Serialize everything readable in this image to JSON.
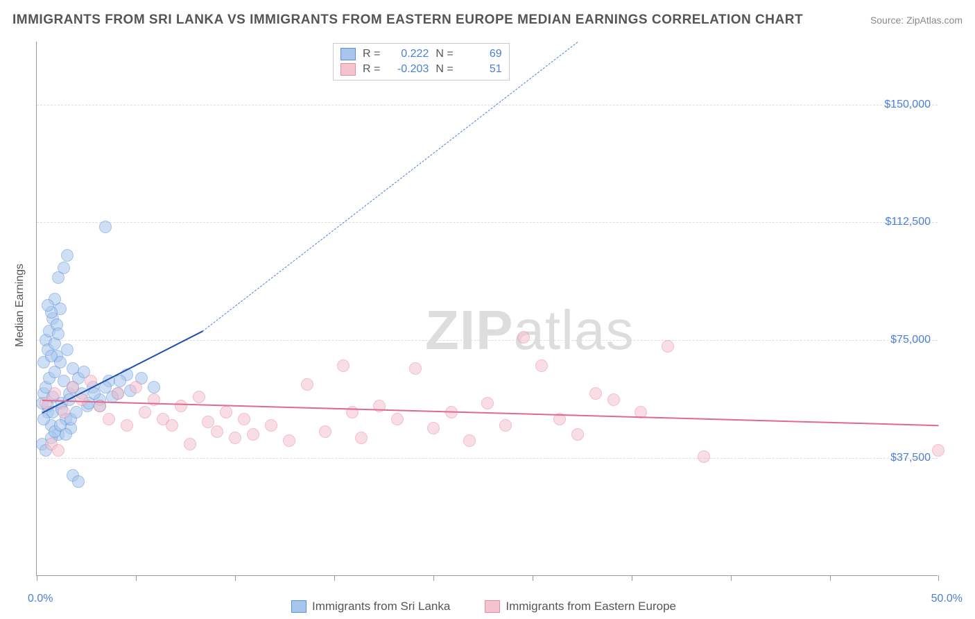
{
  "header": {
    "title": "IMMIGRANTS FROM SRI LANKA VS IMMIGRANTS FROM EASTERN EUROPE MEDIAN EARNINGS CORRELATION CHART",
    "source": "Source: ZipAtlas.com"
  },
  "watermark": {
    "left": "ZIP",
    "right": "atlas"
  },
  "chart": {
    "type": "scatter",
    "ylabel": "Median Earnings",
    "xlim": [
      0,
      50
    ],
    "ylim": [
      0,
      170000
    ],
    "background_color": "#ffffff",
    "grid_color": "#dddddd",
    "axis_color": "#999999",
    "ytick_values": [
      37500,
      75000,
      112500,
      150000
    ],
    "ytick_labels": [
      "$37,500",
      "$75,000",
      "$112,500",
      "$150,000"
    ],
    "xtick_positions": [
      0,
      5.5,
      11,
      16.5,
      22,
      27.5,
      33,
      38.5,
      44,
      50
    ],
    "xtick_labels": {
      "min": "0.0%",
      "max": "50.0%"
    },
    "marker_radius": 9,
    "series": [
      {
        "key": "sri_lanka",
        "label": "Immigrants from Sri Lanka",
        "fill_color": "#a7c6ed",
        "stroke_color": "#5b8fd6",
        "fill_opacity": 0.55,
        "r_value": "0.222",
        "n_value": "69",
        "trend": {
          "x1": 0.3,
          "y1": 52000,
          "x2": 9.2,
          "y2": 78000,
          "dash_x1": 9.2,
          "dash_y1": 78000,
          "dash_x2": 30,
          "dash_y2": 170000,
          "solid_color": "#1f4fa8",
          "dash_color": "#4a7fd6",
          "solid_width": 2,
          "dash_width": 1.5
        },
        "points": [
          [
            0.3,
            55000
          ],
          [
            0.4,
            58000
          ],
          [
            0.5,
            60000
          ],
          [
            0.6,
            52000
          ],
          [
            0.7,
            63000
          ],
          [
            0.8,
            48000
          ],
          [
            0.9,
            57000
          ],
          [
            1.0,
            65000
          ],
          [
            1.1,
            70000
          ],
          [
            1.2,
            45000
          ],
          [
            1.3,
            68000
          ],
          [
            1.4,
            55000
          ],
          [
            1.5,
            62000
          ],
          [
            1.6,
            50000
          ],
          [
            1.7,
            72000
          ],
          [
            1.8,
            58000
          ],
          [
            1.9,
            47000
          ],
          [
            2.0,
            66000
          ],
          [
            0.5,
            75000
          ],
          [
            0.7,
            78000
          ],
          [
            0.9,
            82000
          ],
          [
            1.1,
            80000
          ],
          [
            1.3,
            85000
          ],
          [
            0.4,
            68000
          ],
          [
            0.6,
            72000
          ],
          [
            0.8,
            70000
          ],
          [
            1.0,
            74000
          ],
          [
            1.2,
            77000
          ],
          [
            0.3,
            42000
          ],
          [
            0.5,
            40000
          ],
          [
            0.8,
            44000
          ],
          [
            1.0,
            46000
          ],
          [
            1.3,
            48000
          ],
          [
            1.6,
            45000
          ],
          [
            1.9,
            50000
          ],
          [
            2.2,
            52000
          ],
          [
            2.5,
            58000
          ],
          [
            2.8,
            54000
          ],
          [
            3.1,
            60000
          ],
          [
            3.5,
            56000
          ],
          [
            4.0,
            62000
          ],
          [
            4.5,
            58000
          ],
          [
            5.0,
            64000
          ],
          [
            1.5,
            98000
          ],
          [
            1.7,
            102000
          ],
          [
            1.2,
            95000
          ],
          [
            1.0,
            88000
          ],
          [
            0.8,
            84000
          ],
          [
            0.6,
            86000
          ],
          [
            2.0,
            32000
          ],
          [
            2.3,
            30000
          ],
          [
            2.0,
            60000
          ],
          [
            2.3,
            63000
          ],
          [
            2.6,
            65000
          ],
          [
            2.9,
            55000
          ],
          [
            3.2,
            58000
          ],
          [
            3.5,
            54000
          ],
          [
            3.8,
            60000
          ],
          [
            4.2,
            57000
          ],
          [
            4.6,
            62000
          ],
          [
            5.2,
            59000
          ],
          [
            5.8,
            63000
          ],
          [
            6.5,
            60000
          ],
          [
            3.8,
            111000
          ],
          [
            0.4,
            50000
          ],
          [
            0.6,
            54000
          ],
          [
            0.9,
            52000
          ],
          [
            1.4,
            53000
          ],
          [
            1.8,
            56000
          ]
        ]
      },
      {
        "key": "eastern_europe",
        "label": "Immigrants from Eastern Europe",
        "fill_color": "#f5c2ce",
        "stroke_color": "#e68aa3",
        "fill_opacity": 0.55,
        "r_value": "-0.203",
        "n_value": "51",
        "trend": {
          "x1": 0.3,
          "y1": 56000,
          "x2": 50,
          "y2": 48000,
          "solid_color": "#e06a8f",
          "solid_width": 2
        },
        "points": [
          [
            0.5,
            55000
          ],
          [
            1.0,
            58000
          ],
          [
            1.5,
            52000
          ],
          [
            2.0,
            60000
          ],
          [
            2.5,
            56000
          ],
          [
            3.0,
            62000
          ],
          [
            3.5,
            54000
          ],
          [
            4.0,
            50000
          ],
          [
            4.5,
            58000
          ],
          [
            5.0,
            48000
          ],
          [
            5.5,
            60000
          ],
          [
            6.0,
            52000
          ],
          [
            6.5,
            56000
          ],
          [
            7.0,
            50000
          ],
          [
            7.5,
            48000
          ],
          [
            8.0,
            54000
          ],
          [
            8.5,
            42000
          ],
          [
            9.0,
            57000
          ],
          [
            9.5,
            49000
          ],
          [
            10.0,
            46000
          ],
          [
            10.5,
            52000
          ],
          [
            11.0,
            44000
          ],
          [
            11.5,
            50000
          ],
          [
            12.0,
            45000
          ],
          [
            13.0,
            48000
          ],
          [
            14.0,
            43000
          ],
          [
            15.0,
            61000
          ],
          [
            16.0,
            46000
          ],
          [
            17.0,
            67000
          ],
          [
            17.5,
            52000
          ],
          [
            18.0,
            44000
          ],
          [
            19.0,
            54000
          ],
          [
            20.0,
            50000
          ],
          [
            21.0,
            66000
          ],
          [
            22.0,
            47000
          ],
          [
            23.0,
            52000
          ],
          [
            24.0,
            43000
          ],
          [
            25.0,
            55000
          ],
          [
            26.0,
            48000
          ],
          [
            27.0,
            76000
          ],
          [
            28.0,
            67000
          ],
          [
            29.0,
            50000
          ],
          [
            30.0,
            45000
          ],
          [
            31.0,
            58000
          ],
          [
            32.0,
            56000
          ],
          [
            33.5,
            52000
          ],
          [
            35.0,
            73000
          ],
          [
            37.0,
            38000
          ],
          [
            50.0,
            40000
          ],
          [
            0.8,
            42000
          ],
          [
            1.2,
            40000
          ]
        ]
      }
    ]
  },
  "legend_top": {
    "r_label": "R =",
    "n_label": "N ="
  }
}
